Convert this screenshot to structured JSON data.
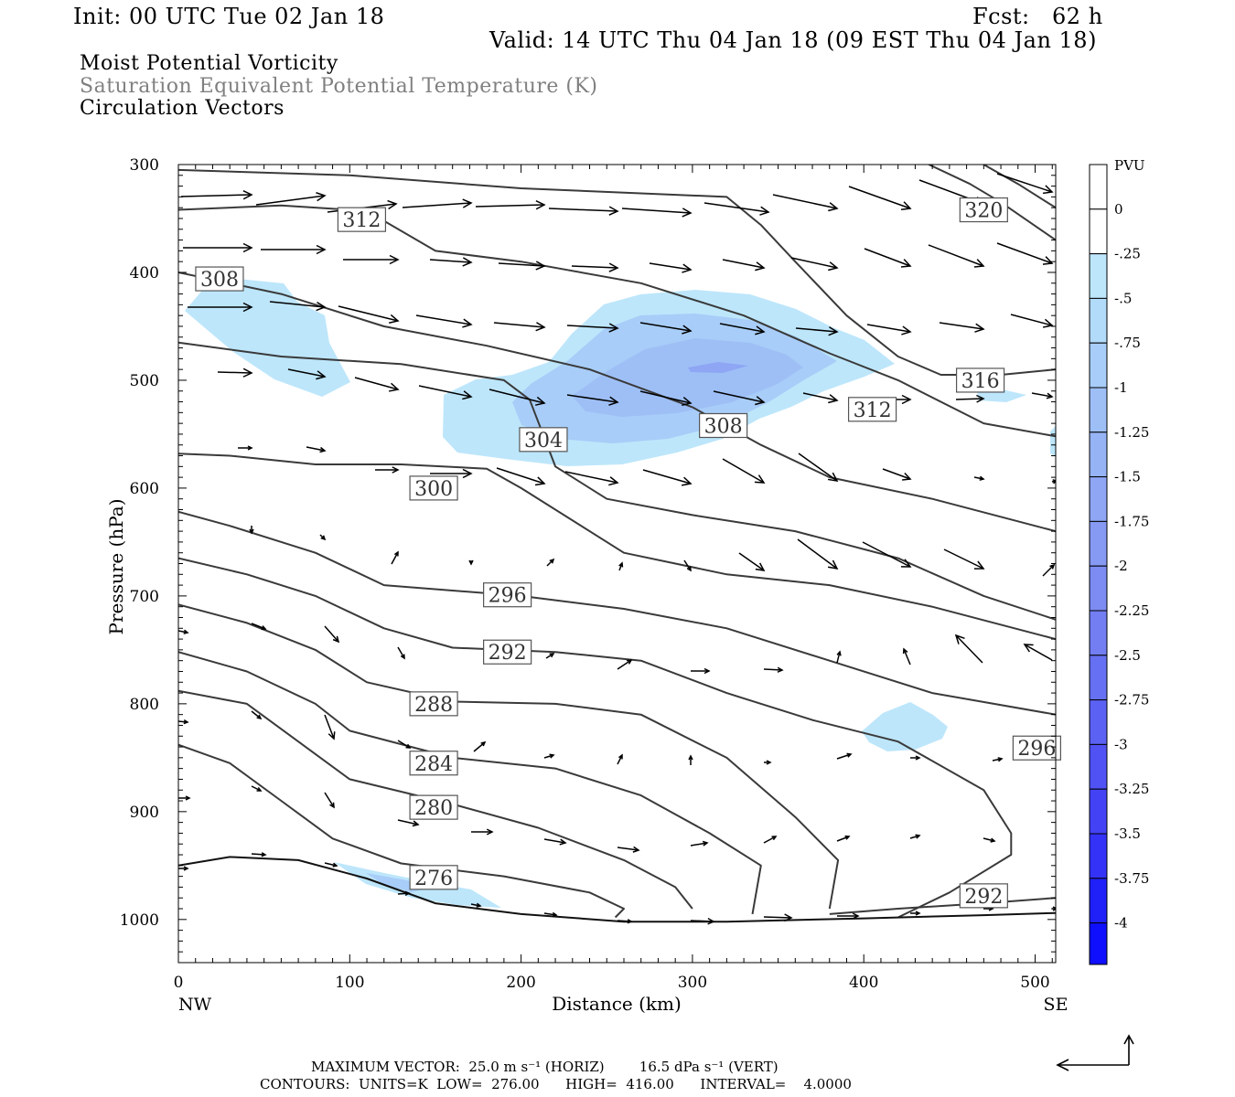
{
  "header": {
    "init": "Init: 00 UTC Tue 02 Jan 18",
    "fcst": "Fcst:   62 h",
    "valid": "Valid: 14 UTC Thu 04 Jan 18 (09 EST Thu 04 Jan 18)"
  },
  "titles": {
    "line1": "Moist Potential Vorticity",
    "line2": "Saturation Equivalent Potential Temperature (K)",
    "line3": "Circulation Vectors",
    "line2_color": "#808080"
  },
  "footer": {
    "max_vector": "MAXIMUM VECTOR:  25.0 m s⁻¹ (HORIZ)        16.5 dPa s⁻¹ (VERT)",
    "contours": "CONTOURS:  UNITS=K  LOW=  276.00      HIGH=  416.00      INTERVAL=    4.0000"
  },
  "chart_data": {
    "type": "cross-section",
    "xlabel": "Distance (km)",
    "ylabel": "Pressure (hPa)",
    "xlim": [
      0,
      512
    ],
    "ylim": [
      300,
      1040
    ],
    "y_inverted": true,
    "x_ticks": [
      0,
      100,
      200,
      300,
      400,
      500
    ],
    "y_ticks": [
      300,
      400,
      500,
      600,
      700,
      800,
      900,
      1000
    ],
    "x_end_labels": {
      "left": "NW",
      "right": "SE"
    },
    "colorbar": {
      "unit": "PVU",
      "labels": [
        "0",
        "-.25",
        "-.5",
        "-.75",
        "-1",
        "-1.25",
        "-1.5",
        "-1.75",
        "-2",
        "-2.25",
        "-2.5",
        "-2.75",
        "-3",
        "-3.25",
        "-3.5",
        "-3.75",
        "-4"
      ],
      "colors": [
        "#ffffff",
        "#bde6fb",
        "#b2daf9",
        "#a8cdf8",
        "#9ebff6",
        "#96b3f5",
        "#8ea6f4",
        "#8699f3",
        "#7c8cf2",
        "#727ef2",
        "#6670f2",
        "#5b61f3",
        "#5052f4",
        "#4442f5",
        "#3432f7",
        "#2020f9",
        "#0f0ffd"
      ]
    },
    "contour_labels": [
      {
        "value": "312",
        "x": 107,
        "p": 351
      },
      {
        "value": "320",
        "x": 470,
        "p": 342
      },
      {
        "value": "308",
        "x": 24,
        "p": 406
      },
      {
        "value": "316",
        "x": 468,
        "p": 500
      },
      {
        "value": "312",
        "x": 405,
        "p": 527
      },
      {
        "value": "304",
        "x": 213,
        "p": 555
      },
      {
        "value": "308",
        "x": 318,
        "p": 542
      },
      {
        "value": "300",
        "x": 149,
        "p": 600
      },
      {
        "value": "296",
        "x": 192,
        "p": 699
      },
      {
        "value": "292",
        "x": 192,
        "p": 752
      },
      {
        "value": "296",
        "x": 501,
        "p": 841
      },
      {
        "value": "288",
        "x": 149,
        "p": 800
      },
      {
        "value": "284",
        "x": 149,
        "p": 855
      },
      {
        "value": "280",
        "x": 149,
        "p": 896
      },
      {
        "value": "276",
        "x": 149,
        "p": 961
      },
      {
        "value": "292",
        "x": 470,
        "p": 978
      }
    ],
    "contours": [
      {
        "value": 300,
        "points": [
          [
            0,
            568
          ],
          [
            30,
            570
          ],
          [
            80,
            578
          ],
          [
            130,
            578
          ],
          [
            180,
            582
          ],
          [
            200,
            600
          ],
          [
            260,
            660
          ],
          [
            320,
            680
          ],
          [
            380,
            690
          ],
          [
            440,
            710
          ],
          [
            512,
            740
          ]
        ]
      },
      {
        "value": 296,
        "points": [
          [
            0,
            622
          ],
          [
            30,
            635
          ],
          [
            80,
            660
          ],
          [
            120,
            690
          ],
          [
            160,
            695
          ],
          [
            200,
            700
          ],
          [
            260,
            712
          ],
          [
            320,
            730
          ],
          [
            380,
            760
          ],
          [
            440,
            790
          ],
          [
            512,
            810
          ]
        ]
      },
      {
        "value": 292,
        "points": [
          [
            0,
            665
          ],
          [
            40,
            680
          ],
          [
            80,
            700
          ],
          [
            120,
            730
          ],
          [
            160,
            748
          ],
          [
            220,
            752
          ],
          [
            270,
            760
          ],
          [
            320,
            790
          ],
          [
            370,
            815
          ],
          [
            420,
            835
          ],
          [
            470,
            880
          ],
          [
            486,
            920
          ],
          [
            486,
            940
          ],
          [
            450,
            975
          ],
          [
            420,
            998
          ]
        ]
      },
      {
        "value": 288,
        "points": [
          [
            0,
            708
          ],
          [
            40,
            725
          ],
          [
            80,
            750
          ],
          [
            110,
            780
          ],
          [
            160,
            798
          ],
          [
            220,
            800
          ],
          [
            270,
            810
          ],
          [
            320,
            850
          ],
          [
            360,
            905
          ],
          [
            385,
            945
          ],
          [
            380,
            990
          ]
        ]
      },
      {
        "value": 284,
        "points": [
          [
            0,
            752
          ],
          [
            40,
            770
          ],
          [
            80,
            800
          ],
          [
            100,
            825
          ],
          [
            160,
            850
          ],
          [
            220,
            860
          ],
          [
            270,
            885
          ],
          [
            310,
            920
          ],
          [
            340,
            950
          ],
          [
            335,
            995
          ]
        ]
      },
      {
        "value": 280,
        "points": [
          [
            0,
            788
          ],
          [
            40,
            800
          ],
          [
            70,
            835
          ],
          [
            100,
            870
          ],
          [
            160,
            893
          ],
          [
            210,
            915
          ],
          [
            260,
            945
          ],
          [
            290,
            970
          ],
          [
            300,
            990
          ]
        ]
      },
      {
        "value": 276,
        "points": [
          [
            0,
            838
          ],
          [
            30,
            855
          ],
          [
            60,
            890
          ],
          [
            90,
            925
          ],
          [
            130,
            948
          ],
          [
            190,
            960
          ],
          [
            240,
            975
          ],
          [
            260,
            990
          ],
          [
            255,
            998
          ]
        ]
      },
      {
        "value": 304,
        "points": [
          [
            0,
            465
          ],
          [
            60,
            478
          ],
          [
            130,
            485
          ],
          [
            190,
            500
          ],
          [
            205,
            518
          ],
          [
            220,
            580
          ],
          [
            250,
            610
          ],
          [
            300,
            625
          ],
          [
            360,
            640
          ],
          [
            420,
            665
          ],
          [
            470,
            700
          ],
          [
            512,
            722
          ]
        ]
      },
      {
        "value": 308,
        "points": [
          [
            0,
            400
          ],
          [
            60,
            420
          ],
          [
            120,
            450
          ],
          [
            180,
            468
          ],
          [
            240,
            490
          ],
          [
            300,
            525
          ],
          [
            340,
            560
          ],
          [
            380,
            590
          ],
          [
            440,
            610
          ],
          [
            512,
            640
          ]
        ]
      },
      {
        "value": 312,
        "points": [
          [
            0,
            342
          ],
          [
            60,
            338
          ],
          [
            110,
            343
          ],
          [
            150,
            380
          ],
          [
            200,
            390
          ],
          [
            270,
            410
          ],
          [
            330,
            440
          ],
          [
            380,
            475
          ],
          [
            420,
            500
          ],
          [
            470,
            540
          ],
          [
            512,
            552
          ]
        ]
      },
      {
        "value": 316,
        "points": [
          [
            0,
            305
          ],
          [
            100,
            310
          ],
          [
            200,
            322
          ],
          [
            320,
            330
          ],
          [
            340,
            356
          ],
          [
            360,
            390
          ],
          [
            390,
            440
          ],
          [
            420,
            478
          ],
          [
            445,
            495
          ],
          [
            480,
            495
          ],
          [
            512,
            490
          ]
        ]
      },
      {
        "value": 320,
        "points": [
          [
            438,
            300
          ],
          [
            462,
            318
          ],
          [
            480,
            335
          ],
          [
            512,
            370
          ]
        ]
      },
      {
        "value": 324,
        "points": [
          [
            470,
            300
          ],
          [
            490,
            318
          ],
          [
            512,
            340
          ]
        ]
      },
      {
        "value": 292,
        "points": [
          [
            380,
            995
          ],
          [
            420,
            990
          ],
          [
            470,
            985
          ],
          [
            512,
            980
          ]
        ]
      }
    ]
  }
}
